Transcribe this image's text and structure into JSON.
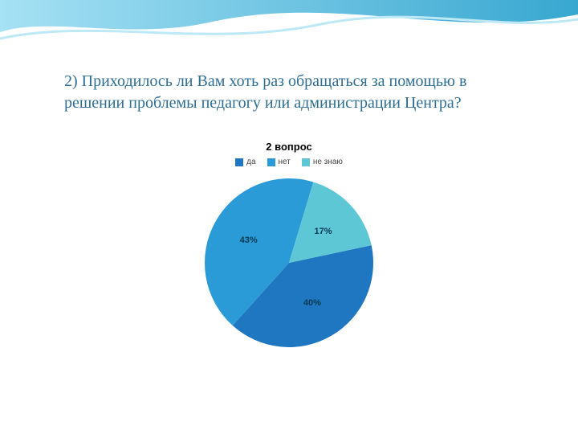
{
  "slide": {
    "heading": "2) Приходилось ли Вам хоть раз обращаться за помощью в решении проблемы педагогу или  администрации Центра?",
    "heading_color": "#2f6e93",
    "heading_fontsize": 20
  },
  "top_wave": {
    "gradient_from": "#a6e1f4",
    "gradient_to": "#38a7d0",
    "line_color": "#bde8f6"
  },
  "chart": {
    "type": "pie",
    "title": "2 вопрос",
    "title_fontsize": 13,
    "label_fontsize": 11,
    "legend_fontsize": 10,
    "radius": 105,
    "start_angle_deg": -12,
    "slices": [
      {
        "label": "да",
        "value": 40,
        "percent_text": "40%",
        "color": "#1f77c1"
      },
      {
        "label": "нет",
        "value": 43,
        "percent_text": "43%",
        "color": "#2a9bd6"
      },
      {
        "label": "не знаю",
        "value": 17,
        "percent_text": "17%",
        "color": "#5ec7d6"
      }
    ],
    "background_color": "#ffffff",
    "label_text_color": "#063a55"
  }
}
